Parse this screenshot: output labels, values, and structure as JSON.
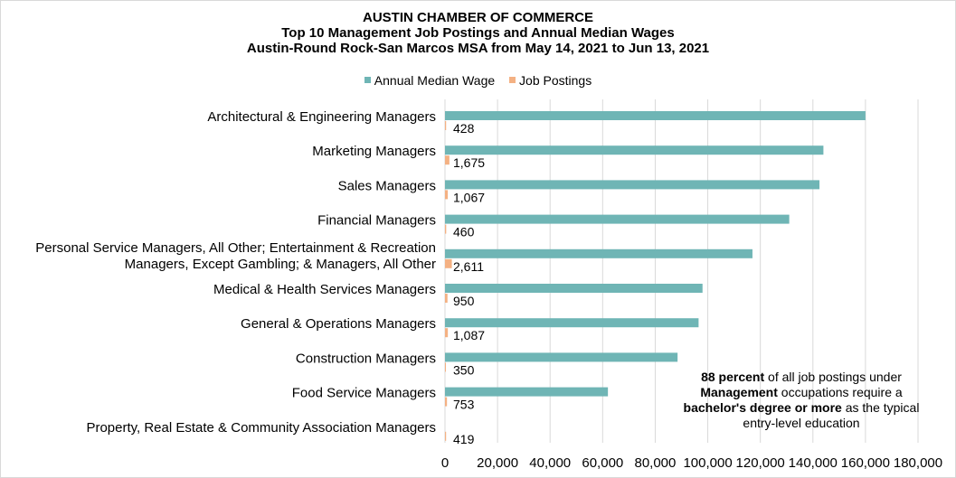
{
  "chart_data": {
    "type": "bar",
    "orientation": "horizontal",
    "title": "AUSTIN CHAMBER OF COMMERCE",
    "subtitle": "Top 10 Management Job Postings and Annual Median Wages",
    "subtitle2": "Austin-Round Rock-San Marcos MSA from May 14, 2021 to Jun 13, 2021",
    "legend_position": "top",
    "grid": true,
    "xlim": [
      0,
      180000
    ],
    "xticks": [
      "0",
      "20,000",
      "40,000",
      "60,000",
      "80,000",
      "100,000",
      "120,000",
      "140,000",
      "160,000",
      "180,000"
    ],
    "categories": [
      [
        "Architectural & Engineering Managers"
      ],
      [
        "Marketing Managers"
      ],
      [
        "Sales Managers"
      ],
      [
        "Financial Managers"
      ],
      [
        "Personal Service Managers, All Other; Entertainment & Recreation",
        "Managers, Except Gambling; & Managers, All Other"
      ],
      [
        "Medical & Health Services Managers"
      ],
      [
        "General & Operations Managers"
      ],
      [
        "Construction Managers"
      ],
      [
        "Food Service Managers"
      ],
      [
        "Property, Real Estate & Community Association Managers"
      ]
    ],
    "series": [
      {
        "name": "Annual Median Wage",
        "color": "#6fb5b5",
        "values": [
          160000,
          144000,
          142500,
          131000,
          117000,
          98000,
          96500,
          88500,
          62000,
          0
        ]
      },
      {
        "name": "Job Postings",
        "color": "#f4b183",
        "values": [
          428,
          1675,
          1067,
          460,
          2611,
          950,
          1087,
          350,
          753,
          419
        ],
        "labels": [
          "428",
          "1,675",
          "1,067",
          "460",
          "2,611",
          "950",
          "1,087",
          "350",
          "753",
          "419"
        ]
      }
    ]
  },
  "note": {
    "lines": [
      [
        {
          "text": "88 percent",
          "bold": true
        },
        {
          "text": " of all job postings under",
          "bold": false
        }
      ],
      [
        {
          "text": "Management",
          "bold": true
        },
        {
          "text": " occupations require a",
          "bold": false
        }
      ],
      [
        {
          "text": "bachelor's degree or more",
          "bold": true
        },
        {
          "text": " as the typical",
          "bold": false
        }
      ],
      [
        {
          "text": "entry-level education",
          "bold": false
        }
      ]
    ]
  }
}
